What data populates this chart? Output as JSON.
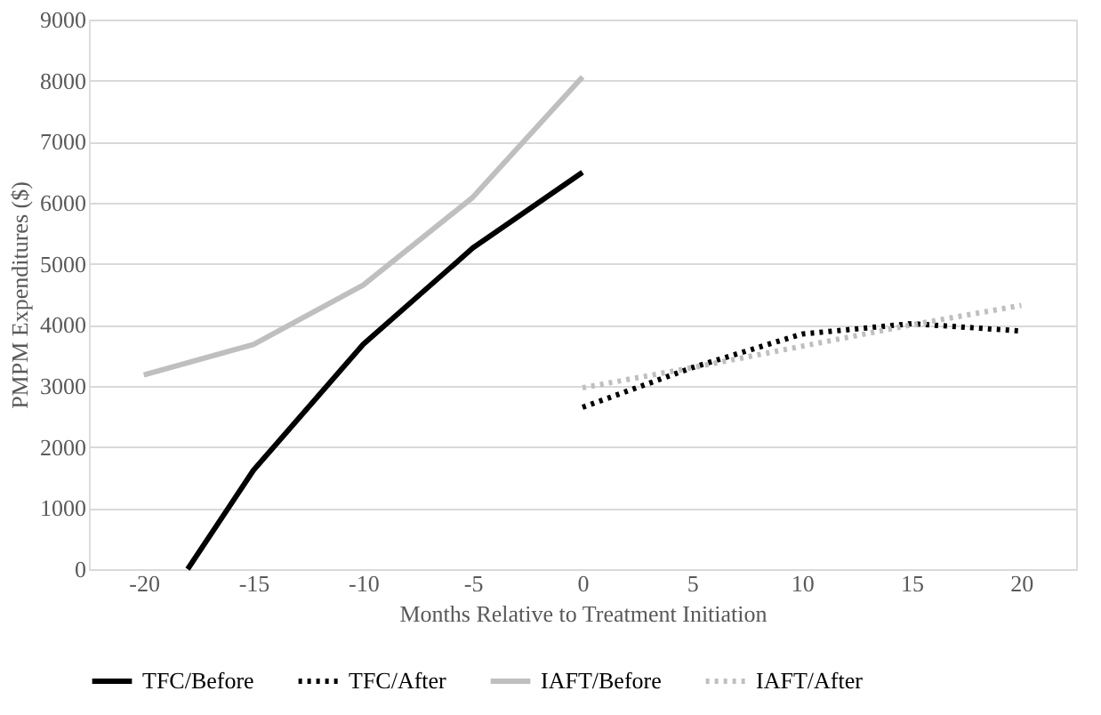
{
  "chart_data": {
    "type": "line",
    "xlabel": "Months Relative to Treatment Initiation",
    "ylabel": "PMPM Expenditures ($)",
    "xlim": [
      -22.5,
      22.5
    ],
    "xticks": [
      -20,
      -15,
      -10,
      -5,
      0,
      5,
      10,
      15,
      20
    ],
    "ylim": [
      0,
      9000
    ],
    "yticks": [
      0,
      1000,
      2000,
      3000,
      4000,
      5000,
      6000,
      7000,
      8000,
      9000
    ],
    "grid": "y",
    "legend": "bottom",
    "series": [
      {
        "name": "TFC/Before",
        "color": "#000000",
        "line_style": "solid",
        "x": [
          -18,
          -15,
          -10,
          -5,
          0
        ],
        "values": [
          0,
          1620,
          3680,
          5260,
          6500
        ]
      },
      {
        "name": "TFC/After",
        "color": "#000000",
        "line_style": "dotted",
        "x": [
          0,
          5,
          10,
          15,
          20
        ],
        "values": [
          2650,
          3300,
          3850,
          4020,
          3900
        ]
      },
      {
        "name": "IAFT/Before",
        "color": "#bfbfbf",
        "line_style": "solid",
        "x": [
          -20,
          -15,
          -10,
          -5,
          0
        ],
        "values": [
          3180,
          3680,
          4650,
          6090,
          8060
        ]
      },
      {
        "name": "IAFT/After",
        "color": "#bfbfbf",
        "line_style": "dotted",
        "x": [
          0,
          5,
          10,
          15,
          20
        ],
        "values": [
          2970,
          3300,
          3650,
          4000,
          4320
        ]
      }
    ]
  }
}
